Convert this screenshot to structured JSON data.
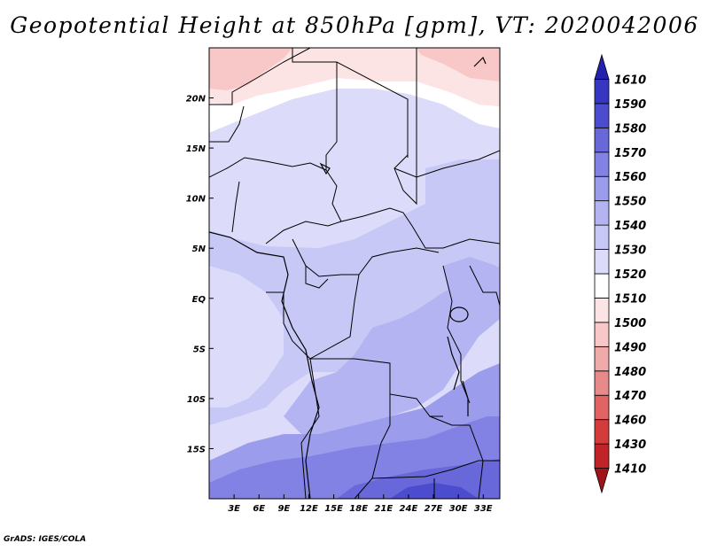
{
  "title": "Geopotential Height at 850hPa [gpm], VT: 2020042006",
  "credit": "GrADS: IGES/COLA",
  "map": {
    "lon_range": [
      0,
      35
    ],
    "lat_range": [
      -20,
      25
    ],
    "lat_labels": [
      "20N",
      "15N",
      "10N",
      "5N",
      "EQ",
      "5S",
      "10S",
      "15S"
    ],
    "lat_values": [
      20,
      15,
      10,
      5,
      0,
      -5,
      -10,
      -15
    ],
    "lon_labels": [
      "3E",
      "6E",
      "9E",
      "12E",
      "15E",
      "18E",
      "21E",
      "24E",
      "27E",
      "30E",
      "33E"
    ],
    "lon_values": [
      3,
      6,
      9,
      12,
      15,
      18,
      21,
      24,
      27,
      30,
      33
    ]
  },
  "colorbar": {
    "levels": [
      "1410",
      "1430",
      "1460",
      "1470",
      "1480",
      "1490",
      "1500",
      "1510",
      "1520",
      "1530",
      "1540",
      "1550",
      "1560",
      "1570",
      "1580",
      "1590",
      "1610"
    ],
    "colors": [
      "#a01418",
      "#c02428",
      "#d43c3c",
      "#e06464",
      "#e88a8a",
      "#f0aaaa",
      "#f8c8c8",
      "#fde4e4",
      "#ffffff",
      "#dcdcfa",
      "#c8c8f6",
      "#b4b4f2",
      "#9c9cec",
      "#8282e4",
      "#6868da",
      "#4c4cce",
      "#3636c0",
      "#2222ae"
    ]
  }
}
